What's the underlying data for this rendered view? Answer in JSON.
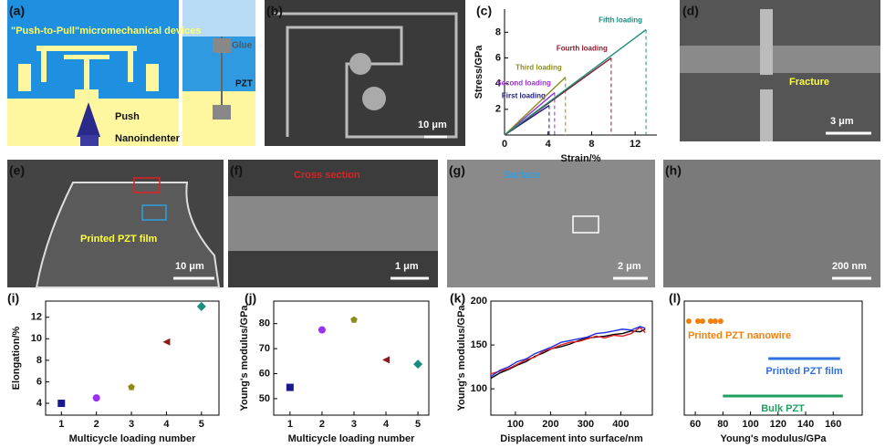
{
  "panels": [
    {
      "label": "(a)",
      "texts": [
        "\"Push-to-Pull\"micromechanical devices",
        "Glue",
        "PZT",
        "Push",
        "Nanoindenter"
      ]
    },
    {
      "label": "(b)",
      "texts": [
        "10 μm"
      ]
    },
    {
      "label": "(d)",
      "texts": [
        "Fracture",
        "3 μm"
      ]
    },
    {
      "label": "(e)",
      "texts": [
        "Printed PZT film",
        "10 μm"
      ]
    },
    {
      "label": "(f)",
      "texts": [
        "Cross section",
        "1 μm"
      ]
    },
    {
      "label": "(g)",
      "texts": [
        "Surface",
        "2 μm"
      ]
    },
    {
      "label": "(h)",
      "texts": [
        "200 nm"
      ]
    }
  ],
  "chart_data": [
    {
      "type": "line",
      "panel": "(c)",
      "ylabel": "Stress/GPa",
      "xlabel": "Strain/%",
      "xlim": [
        0,
        14
      ],
      "xticks": [
        0,
        4,
        8,
        12
      ],
      "ylim": [
        0,
        9.8
      ],
      "yticks": [
        2,
        4,
        6,
        8
      ],
      "series": [
        {
          "name": "First loading",
          "color": "#1a1a8c",
          "x": [
            0,
            4.1
          ],
          "values": [
            0,
            2.3
          ]
        },
        {
          "name": "Second loading",
          "color": "#9b30d9",
          "x": [
            0,
            4.6
          ],
          "values": [
            0,
            3.3
          ]
        },
        {
          "name": "Third loading",
          "color": "#8c8c1a",
          "x": [
            0,
            5.6
          ],
          "values": [
            0,
            4.5
          ]
        },
        {
          "name": "Fourth loading",
          "color": "#8c1a2a",
          "x": [
            0,
            9.8
          ],
          "values": [
            0,
            6.0
          ]
        },
        {
          "name": "Fifth loading",
          "color": "#1a8c80",
          "x": [
            0,
            13.0
          ],
          "values": [
            0,
            8.2
          ]
        }
      ]
    },
    {
      "type": "scatter",
      "panel": "(i)",
      "ylabel": "Elongation/%",
      "xlabel": "Multicycle loading number",
      "xlim": [
        0.55,
        5.5
      ],
      "xticks": [
        1,
        2,
        3,
        4,
        5
      ],
      "ylim": [
        2.9,
        13.5
      ],
      "yticks": [
        4,
        6,
        8,
        10,
        12
      ],
      "x": [
        1,
        2,
        3,
        4,
        5
      ],
      "values": [
        4.0,
        4.5,
        5.5,
        9.7,
        13.0
      ],
      "colors": [
        "#1a1a8c",
        "#9b30f0",
        "#8c8c1a",
        "#8c1a1a",
        "#1a8c80"
      ],
      "markers": [
        "square",
        "circle",
        "pentagon",
        "triangle-left",
        "diamond"
      ]
    },
    {
      "type": "scatter",
      "panel": "(j)",
      "ylabel": "Young's modulus/GPa",
      "xlabel": "Multicycle loading number",
      "xlim": [
        0.49,
        5.34
      ],
      "xticks": [
        1,
        2,
        3,
        4,
        5
      ],
      "ylim": [
        43.4,
        89
      ],
      "yticks": [
        50,
        60,
        70,
        80
      ],
      "x": [
        1,
        2,
        3,
        4,
        5
      ],
      "values": [
        54.5,
        77.5,
        81.5,
        65.5,
        63.8
      ],
      "colors": [
        "#1a1a8c",
        "#9b30f0",
        "#8c8c1a",
        "#8c1a1a",
        "#1a8c80"
      ],
      "markers": [
        "square",
        "circle",
        "pentagon",
        "triangle-left",
        "diamond"
      ]
    },
    {
      "type": "line",
      "panel": "(k)",
      "ylabel": "Young's modulus/GPa",
      "xlabel": "Displacement into surface/nm",
      "xlim": [
        30,
        490
      ],
      "xticks": [
        100,
        200,
        300,
        400
      ],
      "ylim": [
        70,
        200
      ],
      "yticks": [
        100,
        150,
        200
      ],
      "x": [
        30,
        55,
        80,
        105,
        130,
        155,
        180,
        205,
        230,
        255,
        280,
        305,
        330,
        355,
        380,
        405,
        430,
        455,
        470
      ],
      "series": [
        {
          "color": "#000000",
          "values": [
            112,
            118,
            122,
            127,
            131,
            137,
            141,
            146,
            148,
            151,
            155,
            158,
            159,
            160,
            162,
            163,
            166,
            165,
            168
          ]
        },
        {
          "color": "#e02020",
          "values": [
            117,
            120,
            123,
            128,
            133,
            136,
            143,
            146,
            150,
            153,
            154,
            157,
            160,
            158,
            161,
            160,
            163,
            170,
            164
          ]
        },
        {
          "color": "#2030e0",
          "values": [
            114,
            121,
            125,
            131,
            134,
            140,
            144,
            148,
            153,
            155,
            157,
            159,
            163,
            164,
            166,
            168,
            167,
            171,
            169
          ]
        }
      ]
    },
    {
      "type": "range",
      "panel": "(l)",
      "xlabel": "Young's modulus/GPa",
      "xlim": [
        52,
        181
      ],
      "xticks": [
        60,
        80,
        100,
        120,
        140,
        160
      ],
      "items": [
        {
          "name": "Printed PZT nanowire",
          "color": "#f08010",
          "points": [
            55.3,
            61.9,
            65.2,
            71.1,
            74.4,
            78.4
          ]
        },
        {
          "name": "Printed PZT film",
          "color": "#3070e0",
          "range": [
            113,
            165
          ]
        },
        {
          "name": "Bulk PZT",
          "color": "#20a060",
          "range": [
            80,
            167
          ]
        }
      ]
    }
  ]
}
